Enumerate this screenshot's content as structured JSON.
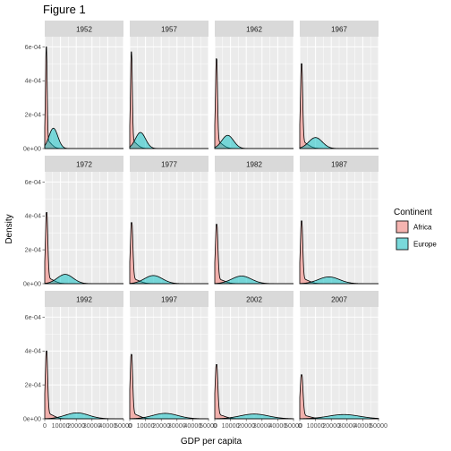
{
  "chart_data": {
    "type": "area",
    "title": "Figure 1",
    "xlabel": "GDP per capita",
    "ylabel": "Density",
    "xlim": [
      0,
      50000
    ],
    "ylim": [
      0,
      0.00066
    ],
    "xticks": [
      0,
      10000,
      20000,
      30000,
      40000,
      50000
    ],
    "xtick_labels": [
      "0",
      "10000",
      "20000",
      "30000",
      "40000",
      "50000"
    ],
    "yticks": [
      0,
      0.0002,
      0.0004,
      0.0006
    ],
    "ytick_labels": [
      "0e+00",
      "2e-04",
      "4e-04",
      "6e-04"
    ],
    "grid": true,
    "facets": [
      "1952",
      "1957",
      "1962",
      "1967",
      "1972",
      "1977",
      "1982",
      "1987",
      "1992",
      "1997",
      "2002",
      "2007"
    ],
    "legend": {
      "title": "Continent",
      "position": "right",
      "entries": [
        {
          "name": "Africa",
          "color": "#F8766D"
        },
        {
          "name": "Europe",
          "color": "#00BFC4"
        }
      ]
    },
    "series": [
      {
        "name": "Africa",
        "color": "#F8766D",
        "fill_opacity": 0.5,
        "peak": [
          0.0006,
          0.00057,
          0.00053,
          0.0005,
          0.00042,
          0.00036,
          0.00035,
          0.00037,
          0.0004,
          0.00038,
          0.00032,
          0.00026
        ],
        "peak_x": [
          1000,
          1050,
          1100,
          1150,
          1200,
          1200,
          1200,
          1150,
          1100,
          1050,
          1100,
          1150
        ],
        "spread": [
          500,
          550,
          600,
          650,
          700,
          750,
          750,
          700,
          700,
          750,
          800,
          850
        ]
      },
      {
        "name": "Europe",
        "color": "#00BFC4",
        "fill_opacity": 0.5,
        "peak": [
          0.00012,
          9.5e-05,
          7.8e-05,
          6.5e-05,
          5.5e-05,
          4.8e-05,
          4.5e-05,
          4e-05,
          3.5e-05,
          3.2e-05,
          2.8e-05,
          2.5e-05
        ],
        "peak_x": [
          5500,
          6800,
          8200,
          10000,
          13000,
          15000,
          17000,
          18500,
          20500,
          22500,
          25000,
          28000
        ],
        "spread": [
          2800,
          3200,
          3700,
          4300,
          5000,
          5700,
          6200,
          6700,
          7400,
          8000,
          9000,
          10000
        ]
      }
    ]
  }
}
